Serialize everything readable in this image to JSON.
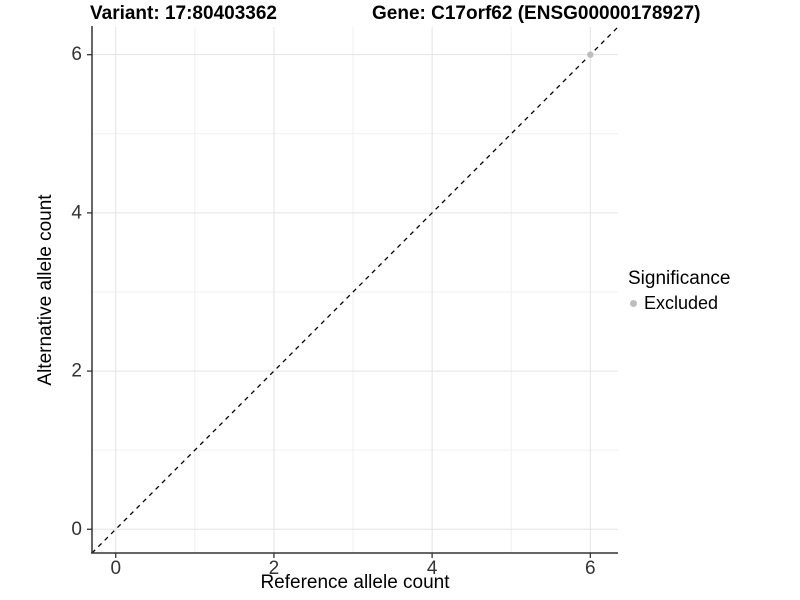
{
  "chart_data": {
    "type": "scatter",
    "title_left": "Variant: 17:80403362",
    "title_right": "Gene: C17orf62 (ENSG00000178927)",
    "xlabel": "Reference allele count",
    "ylabel": "Alternative allele count",
    "xlim": [
      -0.3,
      6.35
    ],
    "ylim": [
      -0.3,
      6.35
    ],
    "x_major_ticks": [
      0,
      2,
      4,
      6
    ],
    "y_major_ticks": [
      0,
      2,
      4,
      6
    ],
    "x_minor_ticks": [
      1,
      3,
      5
    ],
    "y_minor_ticks": [
      1,
      3,
      5
    ],
    "grid": {
      "show": true,
      "major_color": "#e3e3e3",
      "minor_color": "#f0f0f0"
    },
    "identity_line": {
      "equation": "y = x",
      "style": "dashed",
      "color": "#000000"
    },
    "axis_color": "#333333",
    "background": "#ffffff",
    "series": [
      {
        "name": "Excluded",
        "color": "#bebebe",
        "points": [
          {
            "x": 6,
            "y": 6
          }
        ]
      }
    ],
    "legend": {
      "title": "Significance",
      "position": "right",
      "items": [
        {
          "label": "Excluded",
          "color": "#bebebe"
        }
      ]
    }
  }
}
